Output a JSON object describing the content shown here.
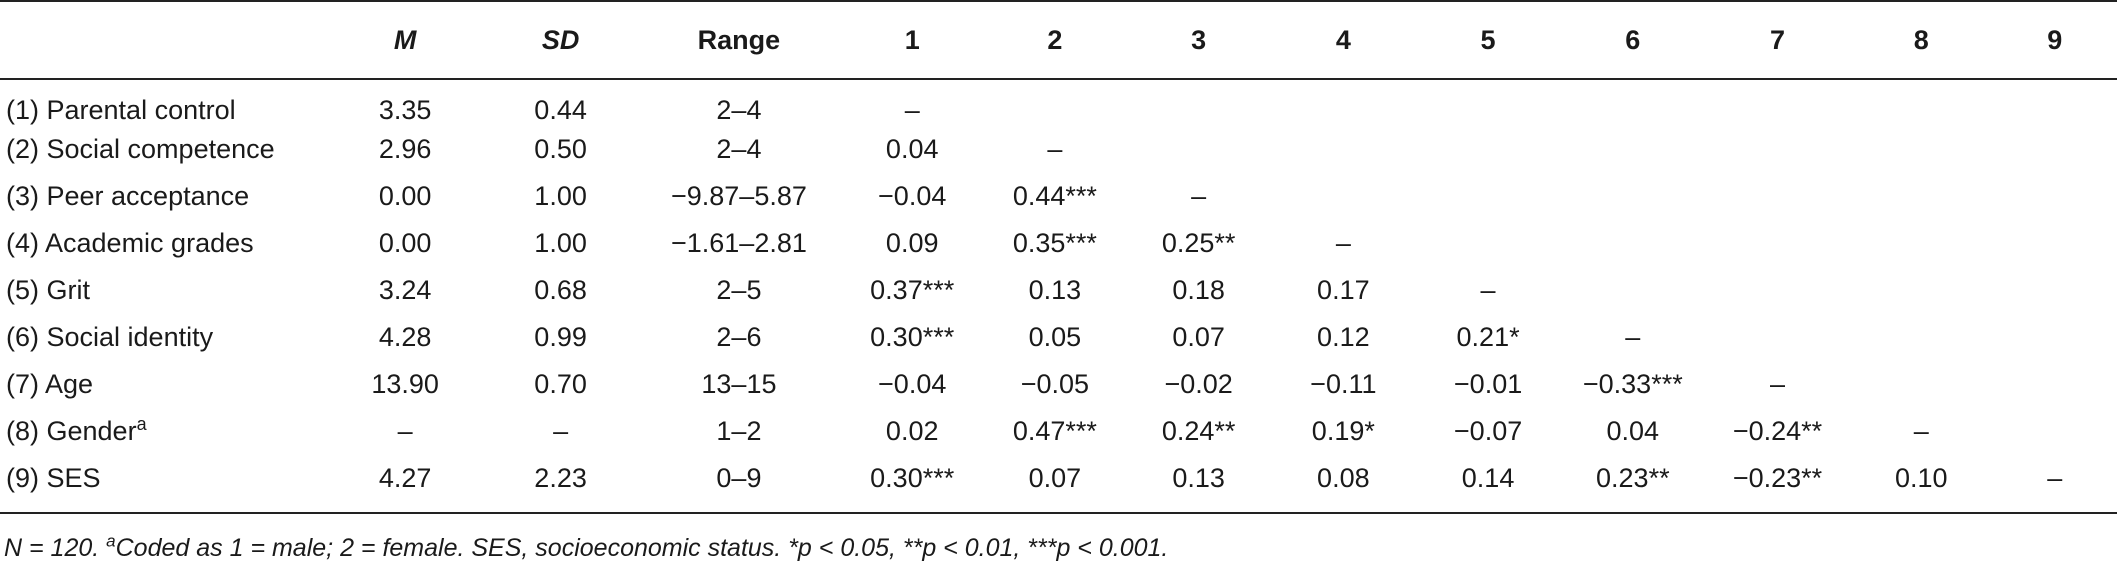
{
  "table": {
    "headers": [
      "",
      "M",
      "SD",
      "Range",
      "1",
      "2",
      "3",
      "4",
      "5",
      "6",
      "7",
      "8",
      "9"
    ],
    "rows": [
      {
        "label": "(1) Parental control",
        "sup": "",
        "cells": [
          "3.35",
          "0.44",
          "2–4",
          "–",
          "",
          "",
          "",
          "",
          "",
          "",
          "",
          ""
        ]
      },
      {
        "label": "(2) Social competence",
        "sup": "",
        "cells": [
          "2.96",
          "0.50",
          "2–4",
          "0.04",
          "–",
          "",
          "",
          "",
          "",
          "",
          "",
          ""
        ]
      },
      {
        "label": "(3) Peer acceptance",
        "sup": "",
        "cells": [
          "0.00",
          "1.00",
          "−9.87–5.87",
          "−0.04",
          "0.44***",
          "–",
          "",
          "",
          "",
          "",
          "",
          ""
        ]
      },
      {
        "label": "(4) Academic grades",
        "sup": "",
        "cells": [
          "0.00",
          "1.00",
          "−1.61–2.81",
          "0.09",
          "0.35***",
          "0.25**",
          "–",
          "",
          "",
          "",
          "",
          ""
        ]
      },
      {
        "label": "(5) Grit",
        "sup": "",
        "cells": [
          "3.24",
          "0.68",
          "2–5",
          "0.37***",
          "0.13",
          "0.18",
          "0.17",
          "–",
          "",
          "",
          "",
          ""
        ]
      },
      {
        "label": "(6) Social identity",
        "sup": "",
        "cells": [
          "4.28",
          "0.99",
          "2–6",
          "0.30***",
          "0.05",
          "0.07",
          "0.12",
          "0.21*",
          "–",
          "",
          "",
          ""
        ]
      },
      {
        "label": "(7) Age",
        "sup": "",
        "cells": [
          "13.90",
          "0.70",
          "13–15",
          "−0.04",
          "−0.05",
          "−0.02",
          "−0.11",
          "−0.01",
          "−0.33***",
          "–",
          "",
          ""
        ]
      },
      {
        "label": "(8) Gender",
        "sup": "a",
        "cells": [
          "–",
          "–",
          "1–2",
          "0.02",
          "0.47***",
          "0.24**",
          "0.19*",
          "−0.07",
          "0.04",
          "−0.24**",
          "–",
          ""
        ]
      },
      {
        "label": "(9) SES",
        "sup": "",
        "cells": [
          "4.27",
          "2.23",
          "0–9",
          "0.30***",
          "0.07",
          "0.13",
          "0.08",
          "0.14",
          "0.23**",
          "−0.23**",
          "0.10",
          "–"
        ]
      }
    ]
  },
  "note": {
    "lead": "N = 120. ",
    "sup": "a",
    "rest": "Coded as 1 = male; 2 = female. SES, socioeconomic status. *p < 0.05, **p < 0.01, ***p < 0.001."
  }
}
